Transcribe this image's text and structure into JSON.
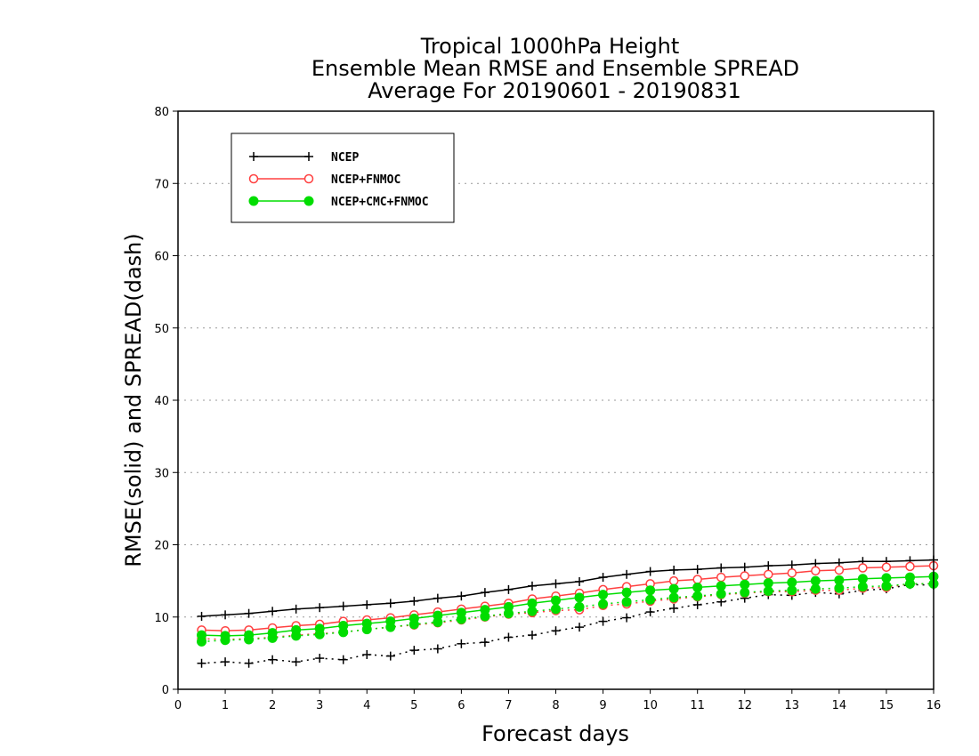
{
  "chart_data": {
    "type": "line",
    "title": [
      "Tropical 1000hPa Height",
      "Ensemble Mean RMSE and Ensemble SPREAD",
      "Average For 20190601 - 20190831"
    ],
    "xlabel": "Forecast days",
    "ylabel": "RMSE(solid) and SPREAD(dash)",
    "xlim": [
      0,
      16
    ],
    "ylim": [
      0,
      80
    ],
    "xticks": [
      "0",
      "1",
      "2",
      "3",
      "4",
      "5",
      "6",
      "7",
      "8",
      "9",
      "10",
      "11",
      "12",
      "13",
      "14",
      "15",
      "16"
    ],
    "yticks": [
      "0",
      "10",
      "20",
      "30",
      "40",
      "50",
      "60",
      "70",
      "80"
    ],
    "grid": "horizontal dotted",
    "legend_position": "top-left",
    "x": [
      0.5,
      1,
      1.5,
      2,
      2.5,
      3,
      3.5,
      4,
      4.5,
      5,
      5.5,
      6,
      6.5,
      7,
      7.5,
      8,
      8.5,
      9,
      9.5,
      10,
      10.5,
      11,
      11.5,
      12,
      12.5,
      13,
      13.5,
      14,
      14.5,
      15,
      15.5,
      16
    ],
    "series": [
      {
        "name": "NCEP",
        "color": "#000000",
        "marker": "plus",
        "rmse": [
          10.1,
          10.3,
          10.5,
          10.8,
          11.1,
          11.3,
          11.5,
          11.7,
          11.9,
          12.2,
          12.6,
          12.9,
          13.4,
          13.8,
          14.3,
          14.6,
          14.9,
          15.5,
          15.9,
          16.3,
          16.5,
          16.6,
          16.8,
          16.9,
          17.1,
          17.2,
          17.4,
          17.5,
          17.7,
          17.7,
          17.8,
          17.9
        ],
        "spread": [
          3.6,
          3.8,
          3.6,
          4.1,
          3.8,
          4.3,
          4.1,
          4.8,
          4.6,
          5.4,
          5.6,
          6.3,
          6.5,
          7.2,
          7.5,
          8.1,
          8.6,
          9.4,
          9.9,
          10.7,
          11.2,
          11.7,
          12.1,
          12.6,
          13.1,
          13.0,
          13.4,
          13.2,
          13.7,
          13.9,
          14.5,
          14.4
        ]
      },
      {
        "name": "NCEP+FNMOC",
        "color": "#ff4040",
        "marker": "open-circle",
        "rmse": [
          8.2,
          8.1,
          8.2,
          8.5,
          8.8,
          9.0,
          9.4,
          9.6,
          9.9,
          10.3,
          10.7,
          11.1,
          11.5,
          11.9,
          12.5,
          12.9,
          13.3,
          13.8,
          14.2,
          14.6,
          15.0,
          15.2,
          15.5,
          15.7,
          15.9,
          16.1,
          16.4,
          16.5,
          16.8,
          16.9,
          17.0,
          17.1
        ],
        "spread": [
          7.0,
          6.9,
          7.0,
          7.2,
          7.5,
          7.7,
          7.9,
          8.3,
          8.6,
          8.9,
          9.2,
          9.6,
          10.0,
          10.4,
          10.6,
          10.9,
          11.0,
          11.6,
          11.8,
          12.2,
          12.5,
          12.8,
          13.1,
          13.3,
          13.5,
          13.5,
          13.7,
          13.7,
          14.0,
          14.1,
          14.6,
          14.6
        ]
      },
      {
        "name": "NCEP+CMC+FNMOC",
        "color": "#00dd00",
        "marker": "filled-circle",
        "rmse": [
          7.5,
          7.4,
          7.5,
          7.8,
          8.2,
          8.4,
          8.8,
          9.1,
          9.4,
          9.8,
          10.2,
          10.6,
          11.0,
          11.4,
          11.9,
          12.3,
          12.7,
          13.1,
          13.4,
          13.7,
          13.9,
          14.1,
          14.3,
          14.5,
          14.7,
          14.8,
          15.0,
          15.1,
          15.3,
          15.4,
          15.5,
          15.6
        ],
        "spread": [
          6.6,
          6.8,
          6.9,
          7.1,
          7.4,
          7.6,
          7.9,
          8.3,
          8.6,
          9.0,
          9.3,
          9.7,
          10.1,
          10.5,
          10.8,
          11.1,
          11.4,
          11.8,
          12.1,
          12.4,
          12.7,
          12.9,
          13.2,
          13.4,
          13.6,
          13.7,
          13.9,
          14.0,
          14.2,
          14.3,
          14.6,
          14.6
        ]
      }
    ]
  }
}
